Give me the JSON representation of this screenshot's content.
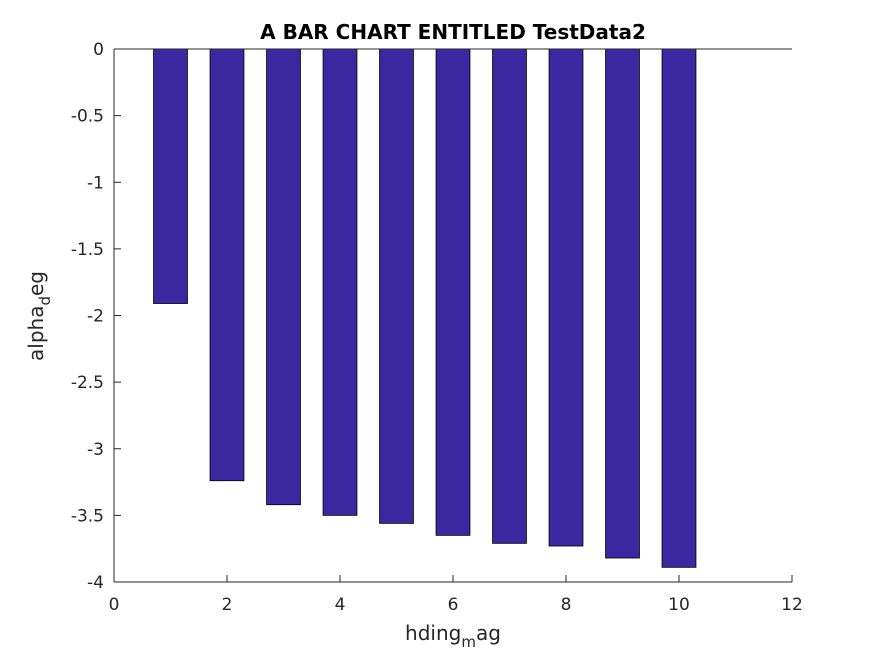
{
  "chart_data": {
    "type": "bar",
    "title": "A BAR CHART ENTITLED TestData2",
    "xlabel": {
      "main": "hding",
      "sub": "m",
      "rest": "ag"
    },
    "ylabel": {
      "main": "alpha",
      "sub": "d",
      "rest": "eg"
    },
    "x": [
      1,
      2,
      3,
      4,
      5,
      6,
      7,
      8,
      9,
      10
    ],
    "values": [
      -1.91,
      -3.24,
      -3.42,
      -3.5,
      -3.56,
      -3.65,
      -3.71,
      -3.73,
      -3.82,
      -3.89
    ],
    "xlim": [
      0,
      12
    ],
    "ylim": [
      -4,
      0
    ],
    "xticks": [
      "0",
      "2",
      "4",
      "6",
      "8",
      "10",
      "12"
    ],
    "yticks": [
      "0",
      "-0.5",
      "-1",
      "-1.5",
      "-2",
      "-2.5",
      "-3",
      "-3.5",
      "-4"
    ],
    "bar_color": "#3b27a0",
    "grid": false,
    "legend": "none"
  }
}
